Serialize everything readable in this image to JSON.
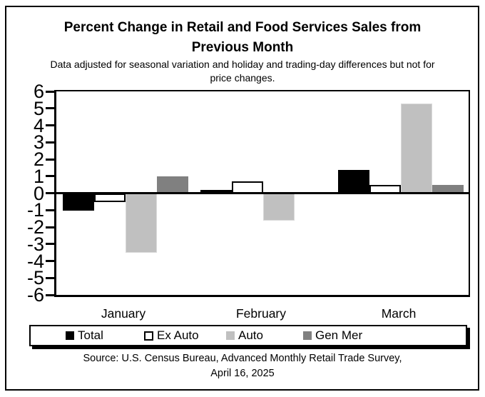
{
  "header": {
    "title_line1": "Percent Change in Retail and Food Services Sales from",
    "title_line2": "Previous Month",
    "subtitle_line1": "Data adjusted for seasonal variation and holiday and trading-day differences but not for",
    "subtitle_line2": "price changes."
  },
  "chart_data": {
    "type": "bar",
    "title": "Percent Change in Retail and Food Services Sales from Previous Month",
    "categories": [
      "January",
      "February",
      "March"
    ],
    "series": [
      {
        "name": "Total",
        "color": "#000000",
        "values": [
          -1.0,
          0.2,
          1.4
        ]
      },
      {
        "name": "Ex Auto",
        "color": "#ffffff",
        "values": [
          -0.5,
          0.7,
          0.5
        ]
      },
      {
        "name": "Auto",
        "color": "#c0c0c0",
        "values": [
          -3.5,
          -1.6,
          5.3
        ]
      },
      {
        "name": "Gen Mer",
        "color": "#808080",
        "values": [
          1.0,
          0.0,
          0.5
        ]
      }
    ],
    "xlabel": "",
    "ylabel": "",
    "ylim": [
      -6,
      6
    ],
    "ytick_step": 1,
    "grid": false,
    "legend_position": "bottom",
    "accent_colors": {
      "axis": "#000000",
      "auto_border": "#d9d9d9"
    }
  },
  "source": {
    "line1": "Source: U.S. Census Bureau, Advanced Monthly Retail Trade Survey,",
    "line2": "April 16, 2025"
  }
}
